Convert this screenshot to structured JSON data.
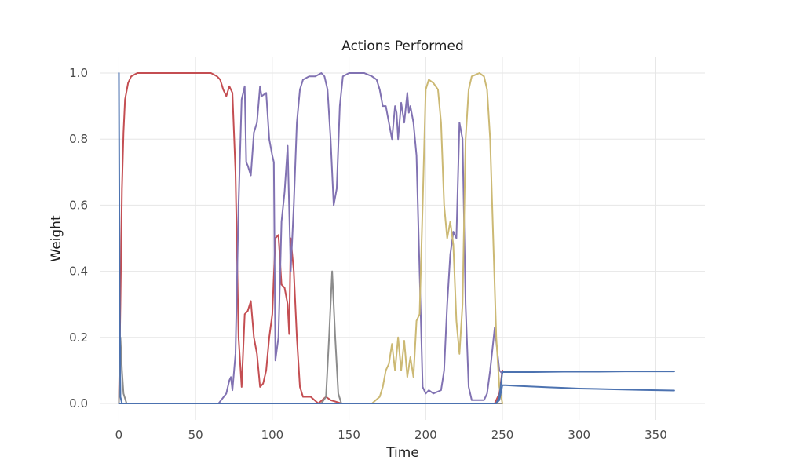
{
  "chart_data": {
    "type": "line",
    "title": "Actions Performed",
    "xlabel": "Time",
    "ylabel": "Weight",
    "xlim": [
      -12,
      382
    ],
    "ylim": [
      -0.05,
      1.05
    ],
    "grid": true,
    "legend": "none",
    "x_ticks": [
      0,
      50,
      100,
      150,
      200,
      250,
      300,
      350
    ],
    "y_ticks": [
      0.0,
      0.2,
      0.4,
      0.6,
      0.8,
      1.0
    ],
    "x_tick_labels": [
      "0",
      "50",
      "100",
      "150",
      "200",
      "250",
      "300",
      "350"
    ],
    "y_tick_labels": [
      "0.0",
      "0.2",
      "0.4",
      "0.6",
      "0.8",
      "1.0"
    ],
    "series": [
      {
        "color": "#c44e52",
        "points": [
          [
            0,
            0.0
          ],
          [
            1,
            0.3
          ],
          [
            2,
            0.65
          ],
          [
            3,
            0.82
          ],
          [
            4,
            0.92
          ],
          [
            6,
            0.97
          ],
          [
            8,
            0.99
          ],
          [
            12,
            1.0
          ],
          [
            60,
            1.0
          ],
          [
            64,
            0.99
          ],
          [
            66,
            0.98
          ],
          [
            68,
            0.95
          ],
          [
            70,
            0.93
          ],
          [
            72,
            0.96
          ],
          [
            74,
            0.94
          ],
          [
            76,
            0.7
          ],
          [
            78,
            0.2
          ],
          [
            80,
            0.05
          ],
          [
            82,
            0.27
          ],
          [
            84,
            0.28
          ],
          [
            86,
            0.31
          ],
          [
            88,
            0.2
          ],
          [
            90,
            0.15
          ],
          [
            92,
            0.05
          ],
          [
            94,
            0.06
          ],
          [
            96,
            0.1
          ],
          [
            98,
            0.2
          ],
          [
            100,
            0.27
          ],
          [
            102,
            0.5
          ],
          [
            104,
            0.51
          ],
          [
            106,
            0.36
          ],
          [
            108,
            0.35
          ],
          [
            110,
            0.3
          ],
          [
            111,
            0.21
          ],
          [
            112,
            0.5
          ],
          [
            114,
            0.4
          ],
          [
            116,
            0.2
          ],
          [
            118,
            0.05
          ],
          [
            120,
            0.02
          ],
          [
            125,
            0.02
          ],
          [
            130,
            0.0
          ],
          [
            135,
            0.02
          ],
          [
            138,
            0.01
          ],
          [
            145,
            0.0
          ],
          [
            245,
            0.0
          ],
          [
            248,
            0.03
          ],
          [
            250,
            0.1
          ]
        ]
      },
      {
        "color": "#8172b2",
        "points": [
          [
            0,
            0.0
          ],
          [
            65,
            0.0
          ],
          [
            70,
            0.03
          ],
          [
            72,
            0.07
          ],
          [
            73,
            0.08
          ],
          [
            74,
            0.04
          ],
          [
            76,
            0.15
          ],
          [
            78,
            0.6
          ],
          [
            80,
            0.92
          ],
          [
            82,
            0.96
          ],
          [
            83,
            0.73
          ],
          [
            84,
            0.72
          ],
          [
            86,
            0.69
          ],
          [
            88,
            0.82
          ],
          [
            90,
            0.85
          ],
          [
            92,
            0.96
          ],
          [
            93,
            0.93
          ],
          [
            96,
            0.94
          ],
          [
            98,
            0.8
          ],
          [
            100,
            0.75
          ],
          [
            101,
            0.73
          ],
          [
            102,
            0.13
          ],
          [
            104,
            0.2
          ],
          [
            106,
            0.55
          ],
          [
            108,
            0.64
          ],
          [
            110,
            0.78
          ],
          [
            112,
            0.4
          ],
          [
            114,
            0.6
          ],
          [
            116,
            0.85
          ],
          [
            118,
            0.95
          ],
          [
            120,
            0.98
          ],
          [
            124,
            0.99
          ],
          [
            128,
            0.99
          ],
          [
            132,
            1.0
          ],
          [
            134,
            0.99
          ],
          [
            136,
            0.95
          ],
          [
            138,
            0.8
          ],
          [
            140,
            0.6
          ],
          [
            142,
            0.65
          ],
          [
            144,
            0.9
          ],
          [
            146,
            0.99
          ],
          [
            150,
            1.0
          ],
          [
            155,
            1.0
          ],
          [
            160,
            1.0
          ],
          [
            165,
            0.99
          ],
          [
            168,
            0.98
          ],
          [
            170,
            0.95
          ],
          [
            172,
            0.9
          ],
          [
            174,
            0.9
          ],
          [
            176,
            0.85
          ],
          [
            178,
            0.8
          ],
          [
            180,
            0.9
          ],
          [
            181,
            0.88
          ],
          [
            182,
            0.8
          ],
          [
            184,
            0.91
          ],
          [
            186,
            0.85
          ],
          [
            188,
            0.94
          ],
          [
            189,
            0.88
          ],
          [
            190,
            0.9
          ],
          [
            192,
            0.85
          ],
          [
            194,
            0.75
          ],
          [
            196,
            0.4
          ],
          [
            198,
            0.05
          ],
          [
            200,
            0.03
          ],
          [
            202,
            0.04
          ],
          [
            205,
            0.03
          ],
          [
            210,
            0.04
          ],
          [
            212,
            0.1
          ],
          [
            214,
            0.3
          ],
          [
            216,
            0.45
          ],
          [
            218,
            0.52
          ],
          [
            220,
            0.5
          ],
          [
            222,
            0.85
          ],
          [
            224,
            0.8
          ],
          [
            226,
            0.3
          ],
          [
            228,
            0.05
          ],
          [
            230,
            0.01
          ],
          [
            235,
            0.01
          ],
          [
            238,
            0.01
          ],
          [
            240,
            0.03
          ],
          [
            242,
            0.1
          ],
          [
            245,
            0.23
          ],
          [
            248,
            0.1
          ],
          [
            250,
            0.09
          ]
        ]
      },
      {
        "color": "#8c8c8c",
        "points": [
          [
            0,
            0.0
          ],
          [
            1,
            0.2
          ],
          [
            2,
            0.1
          ],
          [
            3,
            0.03
          ],
          [
            5,
            0.0
          ],
          [
            132,
            0.0
          ],
          [
            135,
            0.02
          ],
          [
            137,
            0.2
          ],
          [
            139,
            0.4
          ],
          [
            141,
            0.2
          ],
          [
            143,
            0.03
          ],
          [
            145,
            0.0
          ],
          [
            250,
            0.0
          ]
        ]
      },
      {
        "color": "#ccb974",
        "points": [
          [
            0,
            0.0
          ],
          [
            165,
            0.0
          ],
          [
            170,
            0.02
          ],
          [
            172,
            0.05
          ],
          [
            174,
            0.1
          ],
          [
            176,
            0.12
          ],
          [
            178,
            0.18
          ],
          [
            180,
            0.1
          ],
          [
            182,
            0.2
          ],
          [
            184,
            0.1
          ],
          [
            186,
            0.19
          ],
          [
            188,
            0.08
          ],
          [
            190,
            0.14
          ],
          [
            192,
            0.08
          ],
          [
            194,
            0.25
          ],
          [
            196,
            0.27
          ],
          [
            198,
            0.6
          ],
          [
            200,
            0.95
          ],
          [
            202,
            0.98
          ],
          [
            205,
            0.97
          ],
          [
            208,
            0.95
          ],
          [
            210,
            0.85
          ],
          [
            212,
            0.6
          ],
          [
            214,
            0.5
          ],
          [
            216,
            0.55
          ],
          [
            218,
            0.48
          ],
          [
            220,
            0.25
          ],
          [
            222,
            0.15
          ],
          [
            224,
            0.3
          ],
          [
            226,
            0.8
          ],
          [
            228,
            0.95
          ],
          [
            230,
            0.99
          ],
          [
            235,
            1.0
          ],
          [
            238,
            0.99
          ],
          [
            240,
            0.95
          ],
          [
            242,
            0.8
          ],
          [
            244,
            0.5
          ],
          [
            246,
            0.2
          ],
          [
            248,
            0.05
          ],
          [
            250,
            0.0
          ]
        ]
      },
      {
        "color": "#4c72b0",
        "points": [
          [
            0,
            1.0
          ],
          [
            0.5,
            0.35
          ],
          [
            1,
            0.02
          ],
          [
            2,
            0.0
          ],
          [
            246,
            0.0
          ],
          [
            248,
            0.01
          ],
          [
            250,
            0.055
          ],
          [
            252,
            0.055
          ],
          [
            260,
            0.053
          ],
          [
            270,
            0.051
          ],
          [
            280,
            0.049
          ],
          [
            290,
            0.047
          ],
          [
            300,
            0.045
          ],
          [
            320,
            0.043
          ],
          [
            340,
            0.041
          ],
          [
            362,
            0.039
          ]
        ]
      },
      {
        "color": "#4c72b0",
        "points": [
          [
            0,
            0.0
          ],
          [
            246,
            0.0
          ],
          [
            248,
            0.02
          ],
          [
            250,
            0.095
          ],
          [
            252,
            0.095
          ],
          [
            270,
            0.095
          ],
          [
            290,
            0.096
          ],
          [
            310,
            0.096
          ],
          [
            330,
            0.097
          ],
          [
            362,
            0.097
          ]
        ]
      }
    ]
  }
}
